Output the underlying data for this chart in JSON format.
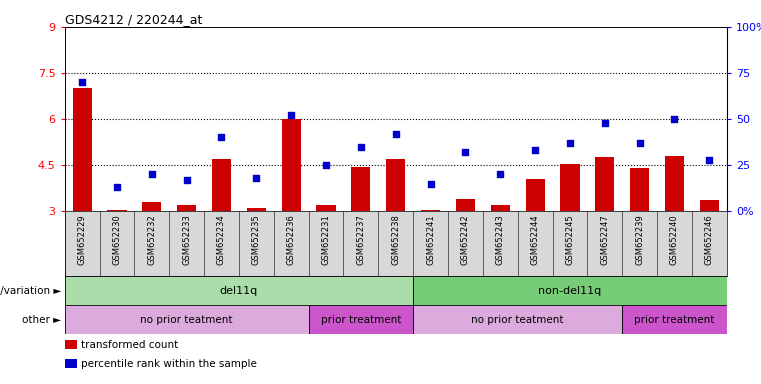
{
  "title": "GDS4212 / 220244_at",
  "samples": [
    "GSM652229",
    "GSM652230",
    "GSM652232",
    "GSM652233",
    "GSM652234",
    "GSM652235",
    "GSM652236",
    "GSM652231",
    "GSM652237",
    "GSM652238",
    "GSM652241",
    "GSM652242",
    "GSM652243",
    "GSM652244",
    "GSM652245",
    "GSM652247",
    "GSM652239",
    "GSM652240",
    "GSM652246"
  ],
  "bar_values": [
    7.0,
    3.05,
    3.3,
    3.2,
    4.7,
    3.1,
    6.0,
    3.2,
    4.45,
    4.7,
    3.05,
    3.4,
    3.2,
    4.05,
    4.55,
    4.75,
    4.42,
    4.8,
    3.35
  ],
  "dot_values": [
    70,
    13,
    20,
    17,
    40,
    18,
    52,
    25,
    35,
    42,
    15,
    32,
    20,
    33,
    37,
    48,
    37,
    50,
    28
  ],
  "ylim_left": [
    3.0,
    9.0
  ],
  "ylim_right": [
    0,
    100
  ],
  "yticks_left": [
    3.0,
    4.5,
    6.0,
    7.5,
    9.0
  ],
  "ytick_labels_left": [
    "3",
    "4.5",
    "6",
    "7.5",
    "9"
  ],
  "yticks_right": [
    0,
    25,
    50,
    75,
    100
  ],
  "ytick_labels_right": [
    "0%",
    "25",
    "50",
    "75",
    "100%"
  ],
  "hlines": [
    4.5,
    6.0,
    7.5
  ],
  "bar_color": "#cc0000",
  "dot_color": "#0000cc",
  "background_color": "#ffffff",
  "plot_bg_color": "#ffffff",
  "genotype_groups": [
    {
      "label": "del11q",
      "start": 0,
      "end": 10,
      "color": "#aaddaa"
    },
    {
      "label": "non-del11q",
      "start": 10,
      "end": 19,
      "color": "#77cc77"
    }
  ],
  "other_groups": [
    {
      "label": "no prior teatment",
      "start": 0,
      "end": 7,
      "color": "#ddaadd"
    },
    {
      "label": "prior treatment",
      "start": 7,
      "end": 10,
      "color": "#cc55cc"
    },
    {
      "label": "no prior teatment",
      "start": 10,
      "end": 16,
      "color": "#ddaadd"
    },
    {
      "label": "prior treatment",
      "start": 16,
      "end": 19,
      "color": "#cc55cc"
    }
  ],
  "genotype_label": "genotype/variation",
  "other_label": "other",
  "legend_items": [
    {
      "label": "transformed count",
      "color": "#cc0000"
    },
    {
      "label": "percentile rank within the sample",
      "color": "#0000cc"
    }
  ]
}
